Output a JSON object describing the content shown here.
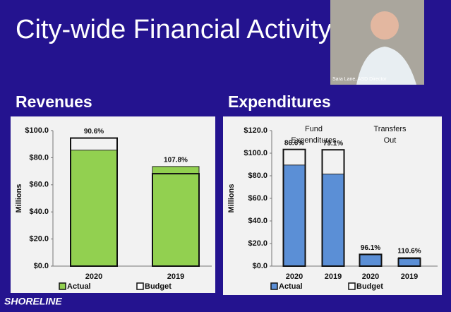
{
  "slide": {
    "title": "City-wide Financial Activity",
    "presenter": "Sara Lane, ASD Director",
    "logo": "SHORELINE"
  },
  "chart_data": [
    {
      "type": "bar",
      "title": "Revenues",
      "y_label": "Millions",
      "categories": [
        "2020",
        "2019"
      ],
      "series": [
        {
          "name": "Actual",
          "color": "#92d050",
          "values": [
            85.6,
            73.5
          ]
        },
        {
          "name": "Budget",
          "color": "#ffffff",
          "values": [
            94.5,
            68.2
          ]
        }
      ],
      "bar_labels": [
        "90.6%",
        "107.8%"
      ],
      "ylim": [
        0,
        100
      ],
      "yticks": [
        {
          "value": 0,
          "label": "$0.0"
        },
        {
          "value": 20,
          "label": "$20.0"
        },
        {
          "value": 40,
          "label": "$40.0"
        },
        {
          "value": 60,
          "label": "$60.0"
        },
        {
          "value": 80,
          "label": "$80.0"
        },
        {
          "value": 100,
          "label": "$100.0"
        }
      ]
    },
    {
      "type": "bar",
      "title": "Expenditures",
      "y_label": "Millions",
      "categories": [
        "2020",
        "2019",
        "2020",
        "2019"
      ],
      "group_labels": [
        "Fund Expenditures",
        "Transfers Out"
      ],
      "series": [
        {
          "name": "Actual",
          "color": "#5b8fd6",
          "values": [
            89.5,
            81.5,
            10.0,
            7.5
          ]
        },
        {
          "name": "Budget",
          "color": "#ffffff",
          "values": [
            103.3,
            103.0,
            10.4,
            6.8
          ]
        }
      ],
      "bar_labels": [
        "86.6%",
        "79.1%",
        "96.1%",
        "110.6%"
      ],
      "ylim": [
        0,
        120
      ],
      "yticks": [
        {
          "value": 0,
          "label": "$0.0"
        },
        {
          "value": 20,
          "label": "$20.0"
        },
        {
          "value": 40,
          "label": "$40.0"
        },
        {
          "value": 60,
          "label": "$60.0"
        },
        {
          "value": 80,
          "label": "$80.0"
        },
        {
          "value": 100,
          "label": "$100.0"
        },
        {
          "value": 120,
          "label": "$120.0"
        }
      ]
    }
  ]
}
